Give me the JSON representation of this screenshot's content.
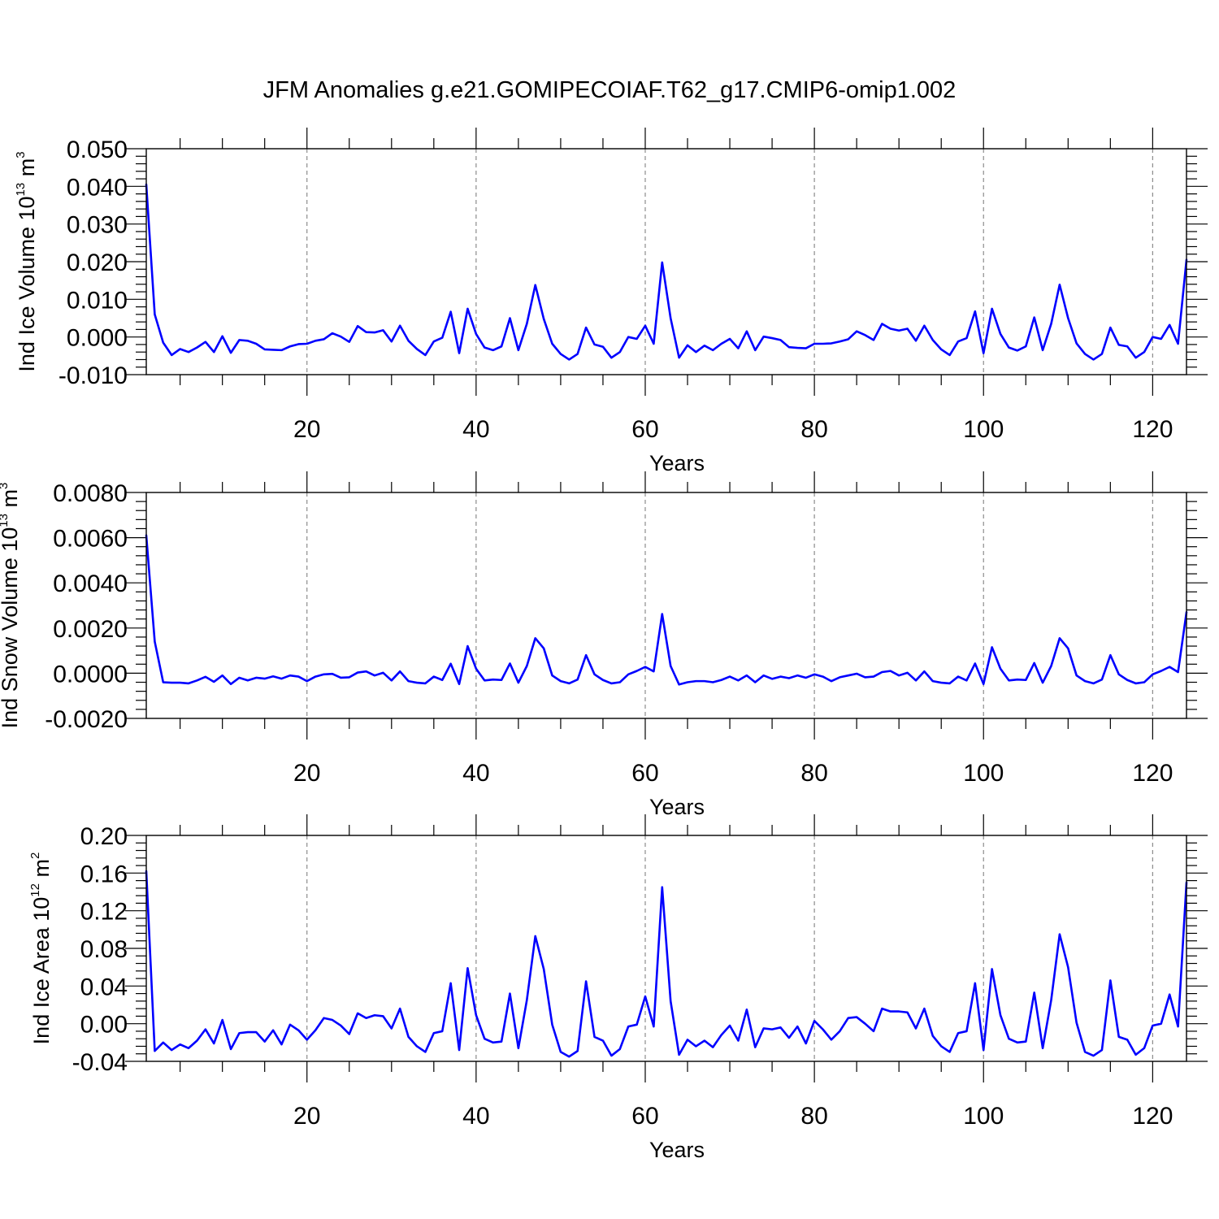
{
  "title": "JFM Anomalies g.e21.GOMIPECOIAF.T62_g17.CMIP6-omip1.002",
  "colors": {
    "series": "#0000ff",
    "grid": "#8c8c8c",
    "axis": "#000000"
  },
  "chart_data": [
    {
      "type": "line",
      "ylabel": {
        "prefix": "Ind Ice Volume 10",
        "exponent": "13",
        "unit": " m",
        "unit_exponent": "3"
      },
      "xlabel": "Years",
      "xlim": [
        1,
        124
      ],
      "ylim": [
        -0.01,
        0.05
      ],
      "yticks": [
        -0.01,
        0.0,
        0.01,
        0.02,
        0.03,
        0.04,
        0.05
      ],
      "ytick_labels": [
        "-0.010",
        "0.000",
        "0.010",
        "0.020",
        "0.030",
        "0.040",
        "0.050"
      ],
      "y_minor_step": 0.002,
      "xticks": [
        20,
        40,
        60,
        80,
        100,
        120
      ],
      "xtick_labels": [
        "20",
        "40",
        "60",
        "80",
        "100",
        "120"
      ],
      "x_minor_step": 5,
      "grid": "vertical dashed at major x ticks",
      "x_start": 1,
      "values": [
        0.0405,
        0.006,
        -0.0015,
        -0.0048,
        -0.0032,
        -0.004,
        -0.0028,
        -0.0013,
        -0.004,
        0.0002,
        -0.0042,
        -0.0008,
        -0.001,
        -0.0018,
        -0.0033,
        -0.0034,
        -0.0035,
        -0.0025,
        -0.0019,
        -0.0018,
        -0.001,
        -0.0006,
        0.001,
        0.0001,
        -0.0013,
        0.0029,
        0.0013,
        0.0012,
        0.0018,
        -0.0012,
        0.003,
        -0.001,
        -0.0032,
        -0.0048,
        -0.0012,
        -0.0002,
        0.0067,
        -0.0043,
        0.0075,
        0.0008,
        -0.0028,
        -0.0035,
        -0.0025,
        0.005,
        -0.0035,
        0.0035,
        0.0138,
        0.0048,
        -0.0018,
        -0.0045,
        -0.006,
        -0.0045,
        0.0025,
        -0.002,
        -0.0026,
        -0.0055,
        -0.004,
        0.0,
        -0.0005,
        0.003,
        -0.0018,
        0.0198,
        0.005,
        -0.0055,
        -0.0022,
        -0.004,
        -0.0023,
        -0.0035,
        -0.0018,
        -0.0005,
        -0.003,
        0.0015,
        -0.0035,
        0.0001,
        -0.0003,
        -0.0008,
        -0.0027,
        -0.0029,
        -0.003,
        -0.0018,
        -0.0018,
        -0.0017,
        -0.0012,
        -0.0006,
        0.0015,
        0.0005,
        -0.0008,
        0.0035,
        0.0022,
        0.0017,
        0.0022,
        -0.001,
        0.003,
        -0.0008,
        -0.0033,
        -0.0048,
        -0.0012,
        -0.0003,
        0.0068,
        -0.0043,
        0.0075,
        0.0008,
        -0.0028,
        -0.0036,
        -0.0025,
        0.0052,
        -0.0035,
        0.0035,
        0.0139,
        0.005,
        -0.0017,
        -0.0045,
        -0.006,
        -0.0045,
        0.0025,
        -0.0021,
        -0.0025,
        -0.0055,
        -0.004,
        0.0,
        -0.0005,
        0.0032,
        -0.0018,
        0.0205
      ]
    },
    {
      "type": "line",
      "ylabel": {
        "prefix": "Ind Snow Volume 10",
        "exponent": "13",
        "unit": " m",
        "unit_exponent": "3"
      },
      "xlabel": "Years",
      "xlim": [
        1,
        124
      ],
      "ylim": [
        -0.002,
        0.008
      ],
      "yticks": [
        -0.002,
        0.0,
        0.002,
        0.004,
        0.006,
        0.008
      ],
      "ytick_labels": [
        "-0.0020",
        "0.0000",
        "0.0020",
        "0.0040",
        "0.0060",
        "0.0080"
      ],
      "y_minor_step": 0.0004,
      "xticks": [
        20,
        40,
        60,
        80,
        100,
        120
      ],
      "xtick_labels": [
        "20",
        "40",
        "60",
        "80",
        "100",
        "120"
      ],
      "x_minor_step": 5,
      "grid": "vertical dashed at major x ticks",
      "x_start": 1,
      "values": [
        0.0061,
        0.0014,
        -0.0004,
        -0.00042,
        -0.00042,
        -0.00045,
        -0.00032,
        -0.00016,
        -0.00038,
        -0.0001,
        -0.00048,
        -0.0002,
        -0.00032,
        -0.0002,
        -0.00024,
        -0.00014,
        -0.00024,
        -0.0001,
        -0.00015,
        -0.00035,
        -0.00015,
        -5e-05,
        -3e-05,
        -0.0002,
        -0.00018,
        3e-05,
        8e-05,
        -0.0001,
        2e-05,
        -0.00032,
        8e-05,
        -0.00035,
        -0.00042,
        -0.00045,
        -0.00015,
        -0.0003,
        0.00042,
        -0.00048,
        0.0012,
        0.0002,
        -0.00032,
        -0.00028,
        -0.0003,
        0.00043,
        -0.00042,
        0.00032,
        0.00155,
        0.0011,
        -0.0001,
        -0.00035,
        -0.00045,
        -0.00028,
        0.0008,
        -5e-05,
        -0.0003,
        -0.00045,
        -0.0004,
        -5e-05,
        0.0001,
        0.00028,
        8e-05,
        0.00262,
        0.00032,
        -0.0005,
        -0.0004,
        -0.00035,
        -0.00035,
        -0.0004,
        -0.0003,
        -0.00015,
        -0.00032,
        -0.0001,
        -0.0004,
        -0.0001,
        -0.00025,
        -0.00015,
        -0.00022,
        -0.0001,
        -0.0002,
        -5e-05,
        -0.00015,
        -0.00035,
        -0.00018,
        -0.0001,
        -2e-05,
        -0.00018,
        -0.00015,
        5e-05,
        0.0001,
        -0.0001,
        2e-05,
        -0.00032,
        8e-05,
        -0.00035,
        -0.00042,
        -0.00045,
        -0.00015,
        -0.00032,
        0.00043,
        -0.00048,
        0.00115,
        0.0002,
        -0.00032,
        -0.00028,
        -0.0003,
        0.00045,
        -0.00042,
        0.00032,
        0.00155,
        0.0011,
        -0.0001,
        -0.00035,
        -0.00045,
        -0.00028,
        0.0008,
        -5e-05,
        -0.0003,
        -0.00045,
        -0.0004,
        -5e-05,
        0.0001,
        0.00028,
        5e-05,
        0.0027
      ]
    },
    {
      "type": "line",
      "ylabel": {
        "prefix": "Ind Ice Area 10",
        "exponent": "12",
        "unit": " m",
        "unit_exponent": "2"
      },
      "xlabel": "Years",
      "xlim": [
        1,
        124
      ],
      "ylim": [
        -0.04,
        0.2
      ],
      "yticks": [
        -0.04,
        0.0,
        0.04,
        0.08,
        0.12,
        0.16,
        0.2
      ],
      "ytick_labels": [
        "-0.04",
        "0.00",
        "0.04",
        "0.08",
        "0.12",
        "0.16",
        "0.20"
      ],
      "y_minor_step": 0.008,
      "xticks": [
        20,
        40,
        60,
        80,
        100,
        120
      ],
      "xtick_labels": [
        "20",
        "40",
        "60",
        "80",
        "100",
        "120"
      ],
      "x_minor_step": 5,
      "grid": "vertical dashed at major x ticks",
      "x_start": 1,
      "values": [
        0.162,
        -0.029,
        -0.02,
        -0.028,
        -0.022,
        -0.026,
        -0.018,
        -0.006,
        -0.021,
        0.004,
        -0.027,
        -0.01,
        -0.009,
        -0.009,
        -0.019,
        -0.007,
        -0.022,
        -0.001,
        -0.007,
        -0.017,
        -0.007,
        0.006,
        0.004,
        -0.002,
        -0.011,
        0.011,
        0.006,
        0.009,
        0.008,
        -0.005,
        0.016,
        -0.014,
        -0.024,
        -0.03,
        -0.01,
        -0.008,
        0.043,
        -0.028,
        0.059,
        0.009,
        -0.016,
        -0.02,
        -0.019,
        0.032,
        -0.026,
        0.025,
        0.093,
        0.058,
        -0.001,
        -0.03,
        -0.035,
        -0.029,
        0.045,
        -0.014,
        -0.018,
        -0.034,
        -0.027,
        -0.003,
        -0.001,
        0.029,
        -0.003,
        0.145,
        0.024,
        -0.033,
        -0.017,
        -0.024,
        -0.018,
        -0.025,
        -0.012,
        -0.002,
        -0.018,
        0.015,
        -0.025,
        -0.005,
        -0.006,
        -0.004,
        -0.015,
        -0.003,
        -0.021,
        0.003,
        -0.006,
        -0.017,
        -0.008,
        0.006,
        0.007,
        0.0,
        -0.008,
        0.016,
        0.013,
        0.013,
        0.012,
        -0.005,
        0.016,
        -0.013,
        -0.024,
        -0.03,
        -0.01,
        -0.008,
        0.043,
        -0.028,
        0.058,
        0.009,
        -0.016,
        -0.02,
        -0.019,
        0.033,
        -0.026,
        0.025,
        0.095,
        0.06,
        0.001,
        -0.03,
        -0.034,
        -0.028,
        0.046,
        -0.014,
        -0.017,
        -0.033,
        -0.026,
        -0.002,
        0.0,
        0.031,
        -0.003,
        0.15
      ]
    }
  ]
}
